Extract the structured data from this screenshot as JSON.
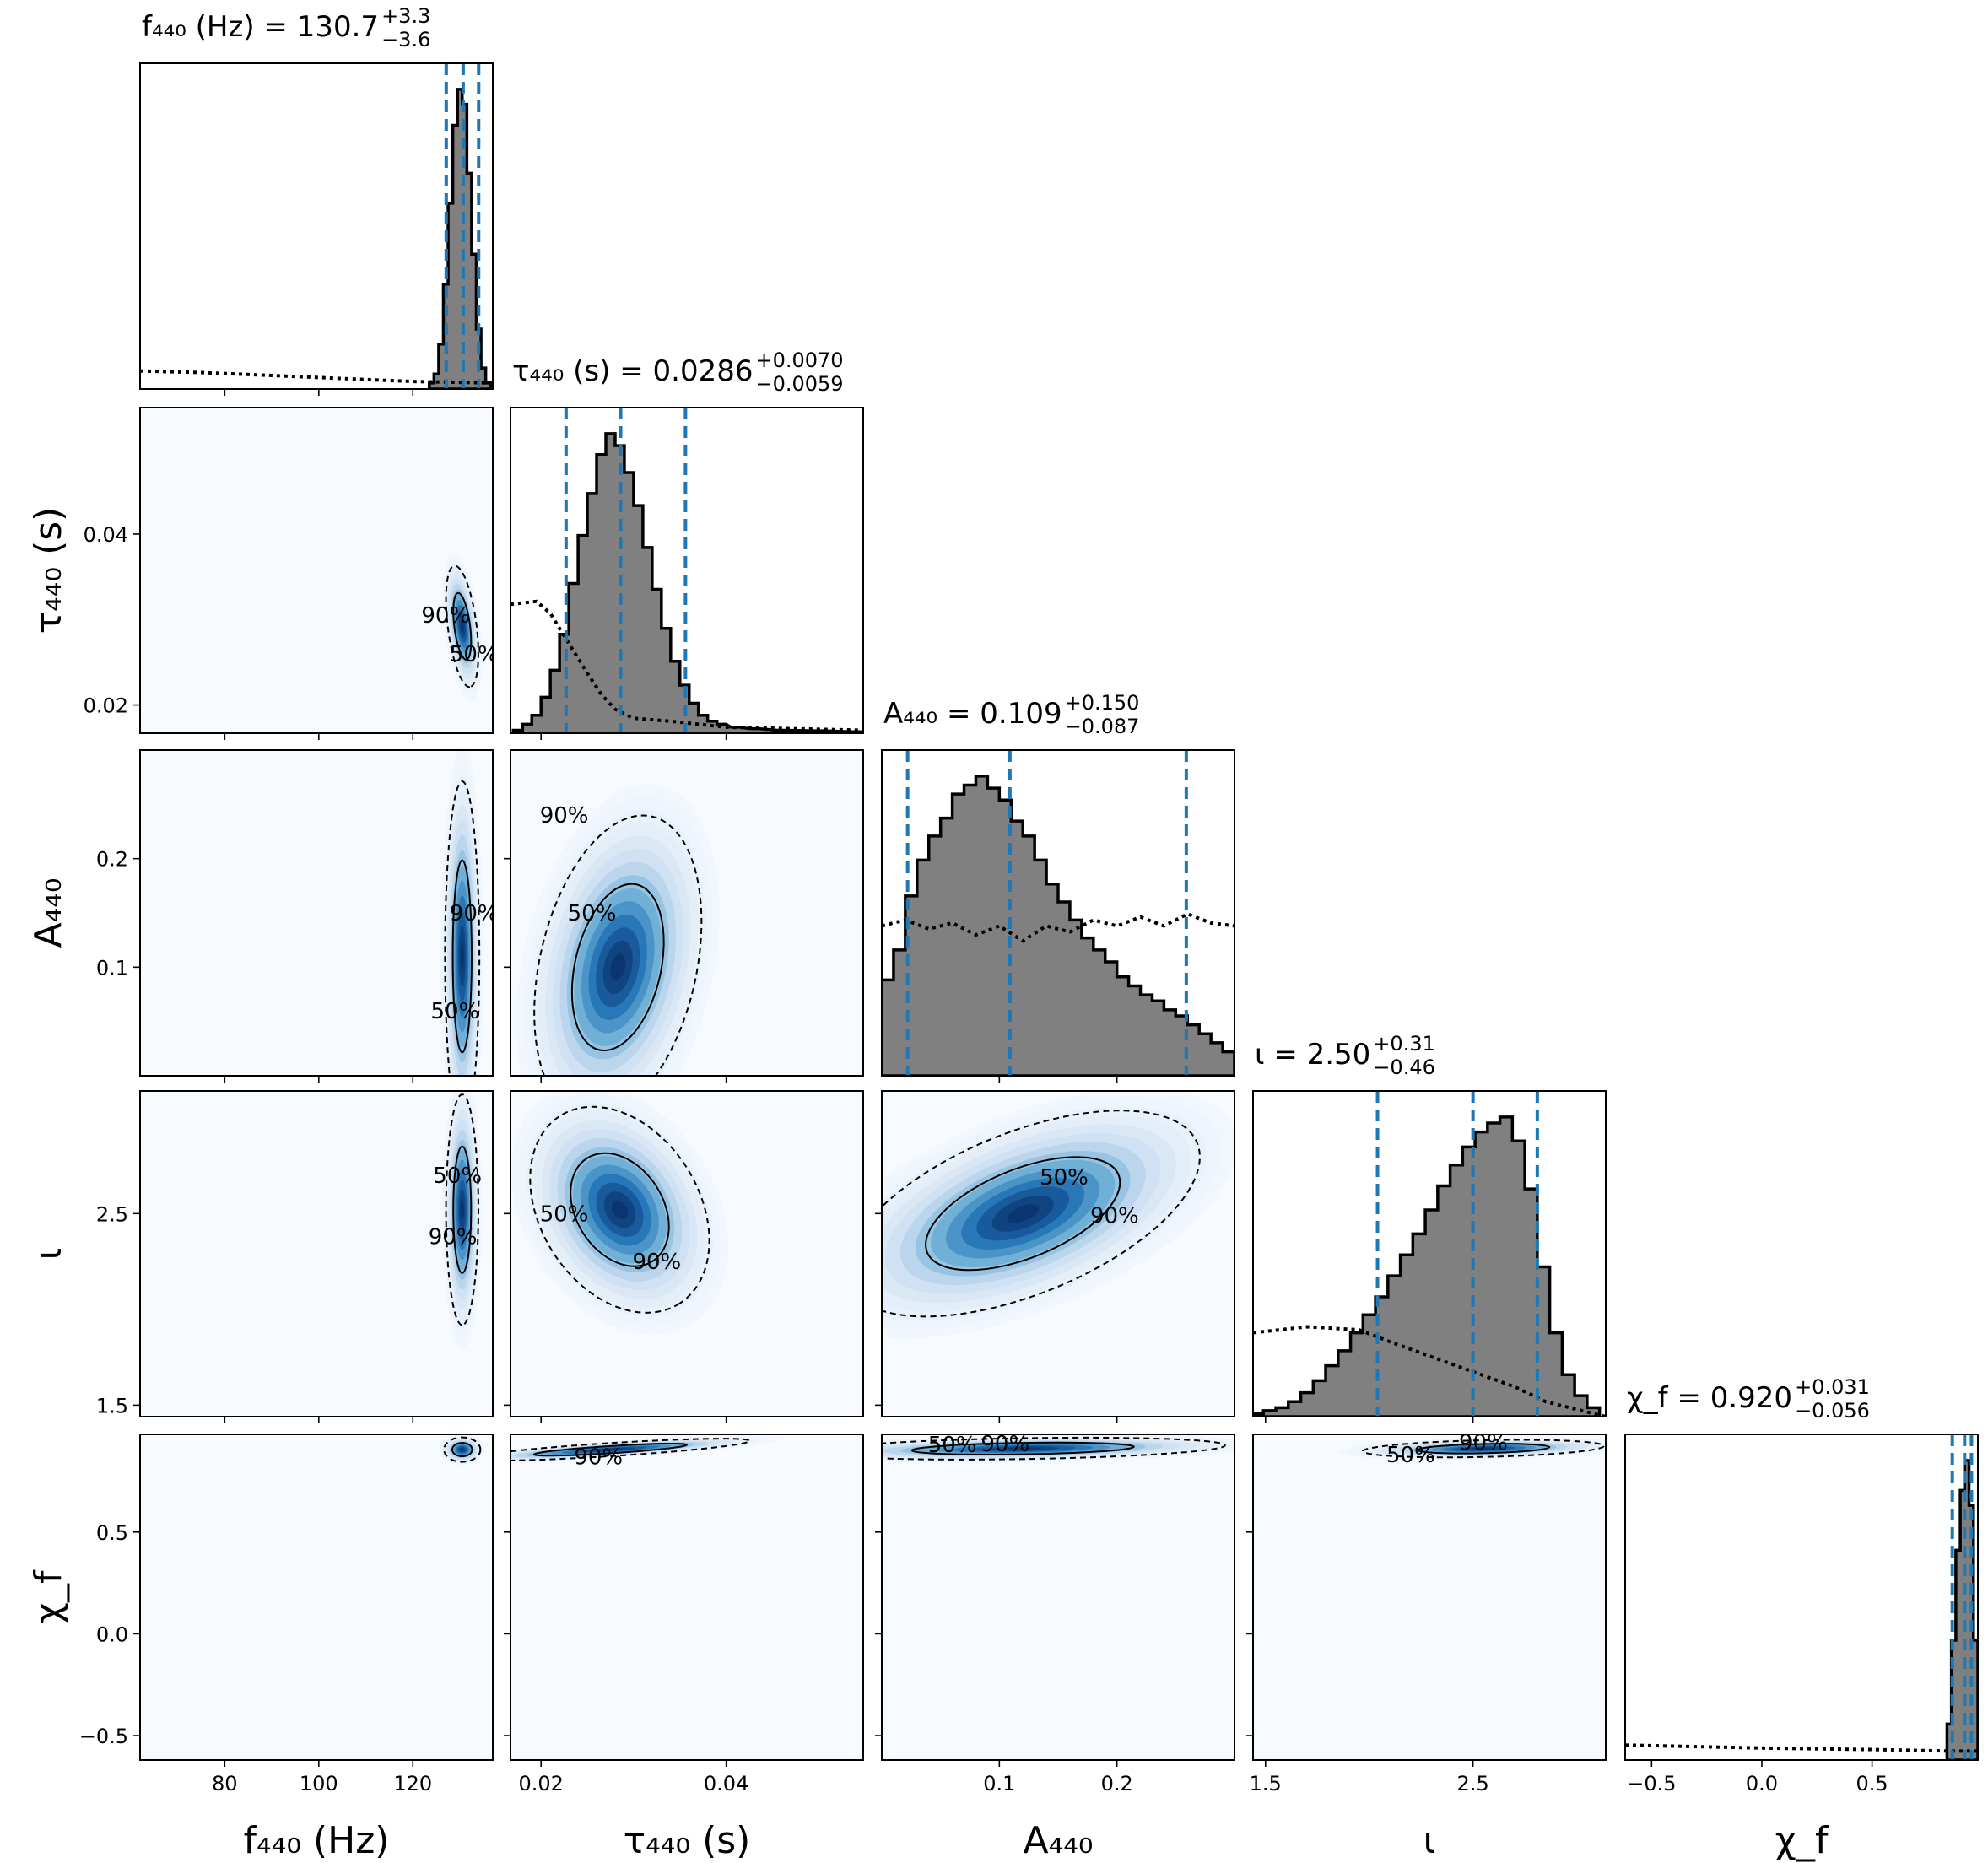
{
  "chart_data": {
    "type": "corner",
    "description_of_layout": "lower-triangular grid of 1D marginal histograms (diagonal) and 2D density panels with 50%/90% credible contours",
    "contour_levels": [
      "50%",
      "90%"
    ],
    "colors": {
      "hist_fill": "#808080",
      "hist_edge": "#000000",
      "quantile_line": "#1f77b4",
      "density_low": "#f7fbff",
      "density_high": "#08306b"
    },
    "parameters": [
      {
        "key": "f440",
        "axis_label": "f₄₄₀ (Hz)",
        "title_name": "f₄₄₀ (Hz) = 130.7",
        "title_plus": "+3.3",
        "title_minus": "−3.6",
        "median": 130.7,
        "lower": 127.1,
        "upper": 134.0,
        "range": [
          62,
          137
        ],
        "ticks": [
          80,
          100,
          120
        ],
        "tick_labels": [
          "80",
          "100",
          "120"
        ],
        "hist_bins": [
          [
            124,
            0.02
          ],
          [
            125,
            0.05
          ],
          [
            126,
            0.15
          ],
          [
            127,
            0.35
          ],
          [
            128,
            0.62
          ],
          [
            129,
            0.88
          ],
          [
            130,
            1.0
          ],
          [
            131,
            0.95
          ],
          [
            132,
            0.72
          ],
          [
            133,
            0.45
          ],
          [
            134,
            0.2
          ],
          [
            135,
            0.07
          ],
          [
            136,
            0.02
          ]
        ],
        "prior": [
          [
            62,
            0.06
          ],
          [
            75,
            0.055
          ],
          [
            90,
            0.045
          ],
          [
            105,
            0.035
          ],
          [
            120,
            0.025
          ],
          [
            137,
            0.02
          ]
        ]
      },
      {
        "key": "tau440",
        "axis_label": "τ₄₄₀ (s)",
        "title_name": "τ₄₄₀ (s) = 0.0286",
        "title_plus": "+0.0070",
        "title_minus": "−0.0059",
        "median": 0.0286,
        "lower": 0.0227,
        "upper": 0.0356,
        "range": [
          0.0167,
          0.0548
        ],
        "ticks": [
          0.02,
          0.04
        ],
        "tick_labels": [
          "0.02",
          "0.04"
        ],
        "hist_bins": [
          [
            0.0175,
            0.01
          ],
          [
            0.0185,
            0.03
          ],
          [
            0.0195,
            0.06
          ],
          [
            0.0205,
            0.12
          ],
          [
            0.0215,
            0.21
          ],
          [
            0.0225,
            0.33
          ],
          [
            0.0235,
            0.5
          ],
          [
            0.0245,
            0.66
          ],
          [
            0.0255,
            0.8
          ],
          [
            0.0265,
            0.93
          ],
          [
            0.0275,
            1.0
          ],
          [
            0.0285,
            0.96
          ],
          [
            0.0295,
            0.87
          ],
          [
            0.0305,
            0.76
          ],
          [
            0.0315,
            0.62
          ],
          [
            0.0325,
            0.48
          ],
          [
            0.0335,
            0.35
          ],
          [
            0.0345,
            0.24
          ],
          [
            0.0355,
            0.16
          ],
          [
            0.0365,
            0.1
          ],
          [
            0.0375,
            0.06
          ],
          [
            0.0385,
            0.04
          ],
          [
            0.0395,
            0.03
          ],
          [
            0.041,
            0.02
          ],
          [
            0.043,
            0.015
          ],
          [
            0.046,
            0.01
          ],
          [
            0.05,
            0.008
          ],
          [
            0.054,
            0.005
          ]
        ],
        "prior": [
          [
            0.0167,
            0.43
          ],
          [
            0.0195,
            0.44
          ],
          [
            0.021,
            0.4
          ],
          [
            0.023,
            0.3
          ],
          [
            0.025,
            0.2
          ],
          [
            0.0265,
            0.13
          ],
          [
            0.028,
            0.08
          ],
          [
            0.03,
            0.05
          ],
          [
            0.034,
            0.04
          ],
          [
            0.04,
            0.02
          ],
          [
            0.0548,
            0.01
          ]
        ]
      },
      {
        "key": "A440",
        "axis_label": "A₄₄₀",
        "title_name": "A₄₄₀ = 0.109",
        "title_plus": "+0.150",
        "title_minus": "−0.087",
        "median": 0.109,
        "lower": 0.022,
        "upper": 0.259,
        "range": [
          0.0,
          0.3
        ],
        "ticks": [
          0.1,
          0.2
        ],
        "tick_labels": [
          "0.1",
          "0.2"
        ],
        "hist_bins": [
          [
            0.005,
            0.32
          ],
          [
            0.015,
            0.42
          ],
          [
            0.025,
            0.6
          ],
          [
            0.035,
            0.72
          ],
          [
            0.045,
            0.8
          ],
          [
            0.055,
            0.86
          ],
          [
            0.065,
            0.94
          ],
          [
            0.075,
            0.97
          ],
          [
            0.085,
            1.0
          ],
          [
            0.095,
            0.96
          ],
          [
            0.105,
            0.92
          ],
          [
            0.115,
            0.85
          ],
          [
            0.125,
            0.8
          ],
          [
            0.135,
            0.72
          ],
          [
            0.145,
            0.64
          ],
          [
            0.155,
            0.58
          ],
          [
            0.165,
            0.52
          ],
          [
            0.175,
            0.46
          ],
          [
            0.185,
            0.42
          ],
          [
            0.195,
            0.38
          ],
          [
            0.205,
            0.33
          ],
          [
            0.215,
            0.3
          ],
          [
            0.225,
            0.27
          ],
          [
            0.235,
            0.25
          ],
          [
            0.245,
            0.22
          ],
          [
            0.255,
            0.2
          ],
          [
            0.265,
            0.17
          ],
          [
            0.275,
            0.14
          ],
          [
            0.285,
            0.11
          ],
          [
            0.295,
            0.08
          ]
        ],
        "prior": [
          [
            0.0,
            0.5
          ],
          [
            0.02,
            0.52
          ],
          [
            0.04,
            0.49
          ],
          [
            0.06,
            0.51
          ],
          [
            0.08,
            0.47
          ],
          [
            0.1,
            0.5
          ],
          [
            0.12,
            0.45
          ],
          [
            0.14,
            0.5
          ],
          [
            0.16,
            0.48
          ],
          [
            0.18,
            0.52
          ],
          [
            0.2,
            0.5
          ],
          [
            0.22,
            0.53
          ],
          [
            0.24,
            0.5
          ],
          [
            0.26,
            0.54
          ],
          [
            0.28,
            0.51
          ],
          [
            0.3,
            0.5
          ]
        ]
      },
      {
        "key": "iota",
        "axis_label": "ι",
        "title_name": "ι = 2.50",
        "title_plus": "+0.31",
        "title_minus": "−0.46",
        "median": 2.5,
        "lower": 2.04,
        "upper": 2.81,
        "range": [
          1.44,
          3.14
        ],
        "ticks": [
          1.5,
          2.5
        ],
        "tick_labels": [
          "1.5",
          "2.5"
        ],
        "hist_bins": [
          [
            1.46,
            0.01
          ],
          [
            1.52,
            0.02
          ],
          [
            1.58,
            0.03
          ],
          [
            1.64,
            0.05
          ],
          [
            1.7,
            0.08
          ],
          [
            1.76,
            0.12
          ],
          [
            1.82,
            0.17
          ],
          [
            1.88,
            0.22
          ],
          [
            1.94,
            0.28
          ],
          [
            2.0,
            0.34
          ],
          [
            2.06,
            0.4
          ],
          [
            2.12,
            0.47
          ],
          [
            2.18,
            0.54
          ],
          [
            2.24,
            0.61
          ],
          [
            2.3,
            0.69
          ],
          [
            2.36,
            0.77
          ],
          [
            2.42,
            0.84
          ],
          [
            2.48,
            0.9
          ],
          [
            2.54,
            0.95
          ],
          [
            2.6,
            0.98
          ],
          [
            2.66,
            1.0
          ],
          [
            2.72,
            0.92
          ],
          [
            2.78,
            0.76
          ],
          [
            2.84,
            0.5
          ],
          [
            2.9,
            0.28
          ],
          [
            2.96,
            0.14
          ],
          [
            3.02,
            0.07
          ],
          [
            3.08,
            0.03
          ]
        ],
        "prior": [
          [
            1.44,
            0.28
          ],
          [
            1.7,
            0.3
          ],
          [
            1.95,
            0.29
          ],
          [
            2.1,
            0.25
          ],
          [
            2.3,
            0.2
          ],
          [
            2.5,
            0.15
          ],
          [
            2.7,
            0.1
          ],
          [
            2.85,
            0.05
          ],
          [
            3.14,
            0.0
          ]
        ]
      },
      {
        "key": "chif",
        "axis_label": "χ_f",
        "title_name": "χ_f = 0.920",
        "title_plus": "+0.031",
        "title_minus": "−0.056",
        "median": 0.92,
        "lower": 0.864,
        "upper": 0.951,
        "range": [
          -0.62,
          0.98
        ],
        "ticks": [
          -0.5,
          0.0,
          0.5
        ],
        "tick_labels": [
          "−0.5",
          "0.0",
          "0.5"
        ],
        "hist_bins": [
          [
            0.85,
            0.12
          ],
          [
            0.87,
            0.4
          ],
          [
            0.89,
            0.7
          ],
          [
            0.91,
            0.9
          ],
          [
            0.93,
            1.0
          ],
          [
            0.95,
            0.85
          ],
          [
            0.97,
            0.4
          ]
        ],
        "prior": [
          [
            -0.62,
            0.05
          ],
          [
            0.0,
            0.04
          ],
          [
            0.5,
            0.035
          ],
          [
            0.85,
            0.03
          ],
          [
            0.98,
            0.03
          ]
        ]
      }
    ],
    "pairs": [
      {
        "row": 1,
        "col": 0,
        "mean": [
          130.5,
          0.0292
        ],
        "sd": [
          1.6,
          0.0033
        ],
        "rho": -0.45,
        "contour_label_positions": [
          [
            "90%",
            127,
            0.0305
          ],
          [
            "50%",
            133,
            0.026
          ]
        ]
      },
      {
        "row": 2,
        "col": 0,
        "mean": [
          130.5,
          0.11
        ],
        "sd": [
          1.7,
          0.075
        ],
        "rho": 0.0,
        "contour_label_positions": [
          [
            "50%",
            129,
            0.06
          ],
          [
            "90%",
            133,
            0.15
          ]
        ]
      },
      {
        "row": 2,
        "col": 1,
        "mean": [
          0.0283,
          0.1
        ],
        "sd": [
          0.0042,
          0.065
        ],
        "rho": 0.3,
        "contour_label_positions": [
          [
            "90%",
            0.0225,
            0.24
          ],
          [
            "50%",
            0.0255,
            0.15
          ]
        ]
      },
      {
        "row": 3,
        "col": 0,
        "mean": [
          130.5,
          2.52
        ],
        "sd": [
          1.6,
          0.28
        ],
        "rho": 0.0,
        "contour_label_positions": [
          [
            "90%",
            128.5,
            2.38
          ],
          [
            "50%",
            129.5,
            2.7
          ]
        ]
      },
      {
        "row": 3,
        "col": 1,
        "mean": [
          0.0285,
          2.52
        ],
        "sd": [
          0.0045,
          0.25
        ],
        "rho": -0.3,
        "contour_label_positions": [
          [
            "50%",
            0.0225,
            2.5
          ],
          [
            "90%",
            0.0325,
            2.25
          ]
        ]
      },
      {
        "row": 3,
        "col": 2,
        "mean": [
          0.12,
          2.5
        ],
        "sd": [
          0.07,
          0.25
        ],
        "rho": 0.55,
        "contour_label_positions": [
          [
            "50%",
            0.155,
            2.69
          ],
          [
            "90%",
            0.198,
            2.49
          ]
        ]
      },
      {
        "row": 4,
        "col": 0,
        "mean": [
          130.5,
          0.905
        ],
        "sd": [
          1.8,
          0.028
        ],
        "rho": 0.0,
        "contour_label_positions": []
      },
      {
        "row": 4,
        "col": 1,
        "mean": [
          0.0275,
          0.905
        ],
        "sd": [
          0.007,
          0.025
        ],
        "rho": 0.8,
        "contour_label_positions": [
          [
            "90%",
            0.0262,
            0.87
          ]
        ]
      },
      {
        "row": 4,
        "col": 2,
        "mean": [
          0.12,
          0.91
        ],
        "sd": [
          0.08,
          0.025
        ],
        "rho": 0.3,
        "contour_label_positions": [
          [
            "50%",
            0.06,
            0.93
          ],
          [
            "90%",
            0.105,
            0.935
          ]
        ]
      },
      {
        "row": 4,
        "col": 3,
        "mean": [
          2.55,
          0.91
        ],
        "sd": [
          0.27,
          0.02
        ],
        "rho": 0.3,
        "contour_label_positions": [
          [
            "50%",
            2.2,
            0.88
          ],
          [
            "90%",
            2.55,
            0.94
          ]
        ]
      }
    ],
    "xlabel_row": 4,
    "ylabel_col": 0
  }
}
